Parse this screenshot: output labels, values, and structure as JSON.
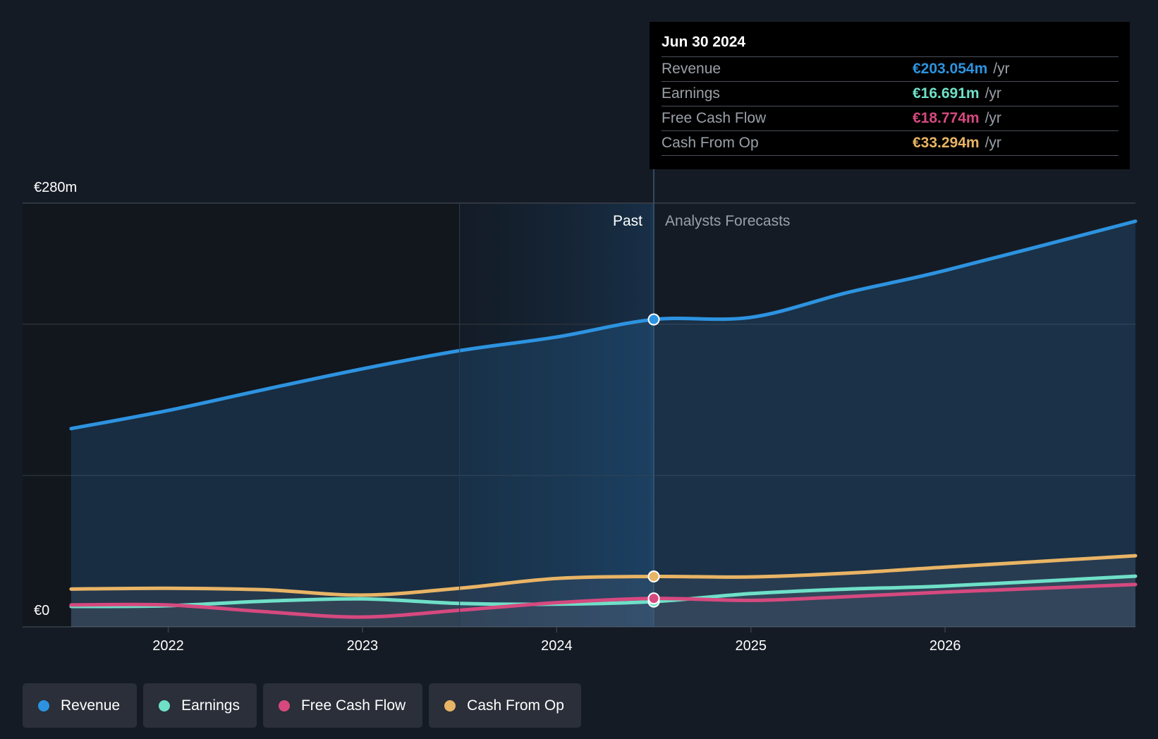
{
  "chart_data": {
    "type": "line",
    "title": "",
    "y_axis": {
      "min": 0,
      "max": 280,
      "top_label": "€280m",
      "bottom_label": "€0"
    },
    "x_ticks": [
      {
        "label": "2022",
        "t": 2022.0
      },
      {
        "label": "2023",
        "t": 2023.0
      },
      {
        "label": "2024",
        "t": 2024.0
      },
      {
        "label": "2025",
        "t": 2025.0
      },
      {
        "label": "2026",
        "t": 2026.0
      }
    ],
    "x_range": [
      2021.25,
      2026.98
    ],
    "past_label": "Past",
    "forecast_label": "Analysts Forecasts",
    "divider_t": 2024.5,
    "shaded_start_t": 2023.5,
    "series": [
      {
        "name": "Revenue",
        "key": "revenue",
        "color": "#2d93e0",
        "area": true,
        "points": [
          [
            2021.5,
            131
          ],
          [
            2022.0,
            143
          ],
          [
            2022.5,
            157
          ],
          [
            2023.0,
            170.5
          ],
          [
            2023.5,
            182.5
          ],
          [
            2024.0,
            191.5
          ],
          [
            2024.5,
            203.1
          ],
          [
            2025.0,
            204.5
          ],
          [
            2025.5,
            221
          ],
          [
            2026.0,
            235.5
          ],
          [
            2026.98,
            268
          ]
        ]
      },
      {
        "name": "Cash From Op",
        "key": "cfo",
        "color": "#e8b465",
        "area": true,
        "points": [
          [
            2021.5,
            25
          ],
          [
            2022.0,
            25.5
          ],
          [
            2022.5,
            24.5
          ],
          [
            2023.0,
            21
          ],
          [
            2023.5,
            25.5
          ],
          [
            2024.0,
            32
          ],
          [
            2024.5,
            33.3
          ],
          [
            2025.0,
            33
          ],
          [
            2025.5,
            35.5
          ],
          [
            2026.0,
            39.5
          ],
          [
            2026.98,
            47
          ]
        ]
      },
      {
        "name": "Earnings",
        "key": "earnings",
        "color": "#6fe0c8",
        "area": true,
        "points": [
          [
            2021.5,
            13.5
          ],
          [
            2022.0,
            14
          ],
          [
            2022.5,
            17
          ],
          [
            2023.0,
            18.5
          ],
          [
            2023.5,
            15.5
          ],
          [
            2024.0,
            15
          ],
          [
            2024.5,
            16.7
          ],
          [
            2025.0,
            22
          ],
          [
            2025.5,
            25
          ],
          [
            2026.0,
            27
          ],
          [
            2026.98,
            33.5
          ]
        ]
      },
      {
        "name": "Free Cash Flow",
        "key": "fcf",
        "color": "#d6497f",
        "area": false,
        "points": [
          [
            2021.5,
            14.5
          ],
          [
            2022.0,
            14.5
          ],
          [
            2022.5,
            10
          ],
          [
            2023.0,
            6.5
          ],
          [
            2023.5,
            11
          ],
          [
            2024.0,
            16
          ],
          [
            2024.5,
            18.8
          ],
          [
            2025.0,
            17.5
          ],
          [
            2025.5,
            20
          ],
          [
            2026.0,
            23
          ],
          [
            2026.98,
            28
          ]
        ]
      }
    ]
  },
  "tooltip": {
    "date": "Jun 30 2024",
    "unit": "/yr",
    "rows": [
      {
        "name": "Revenue",
        "value": "€203.054m",
        "color": "#2d93e0"
      },
      {
        "name": "Earnings",
        "value": "€16.691m",
        "color": "#6fe0c8"
      },
      {
        "name": "Free Cash Flow",
        "value": "€18.774m",
        "color": "#d6497f"
      },
      {
        "name": "Cash From Op",
        "value": "€33.294m",
        "color": "#e8b465"
      }
    ]
  },
  "legend": [
    {
      "label": "Revenue",
      "color": "#2d93e0"
    },
    {
      "label": "Earnings",
      "color": "#6fe0c8"
    },
    {
      "label": "Free Cash Flow",
      "color": "#d6497f"
    },
    {
      "label": "Cash From Op",
      "color": "#e8b465"
    }
  ]
}
